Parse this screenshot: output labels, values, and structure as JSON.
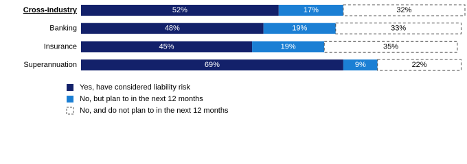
{
  "chart_data": {
    "type": "stacked-bar-horizontal",
    "categories": [
      "Cross-industry",
      "Banking",
      "Insurance",
      "Superannuation"
    ],
    "series": [
      {
        "name": "Yes, have considered liability risk",
        "color": "#13216a",
        "values": [
          52,
          48,
          45,
          69
        ],
        "value_labels": [
          "52%",
          "48%",
          "45%",
          "69%"
        ]
      },
      {
        "name": "No, but plan to in the next 12 months",
        "color": "#1b7fd4",
        "values": [
          17,
          19,
          19,
          9
        ],
        "value_labels": [
          "17%",
          "19%",
          "19%",
          "9%"
        ]
      },
      {
        "name": "No, and do not plan to in the next 12 months",
        "color": "#ffffff",
        "values": [
          32,
          33,
          35,
          22
        ],
        "value_labels": [
          "32%",
          "33%",
          "35%",
          "22%"
        ]
      }
    ],
    "legend": "bottom"
  }
}
